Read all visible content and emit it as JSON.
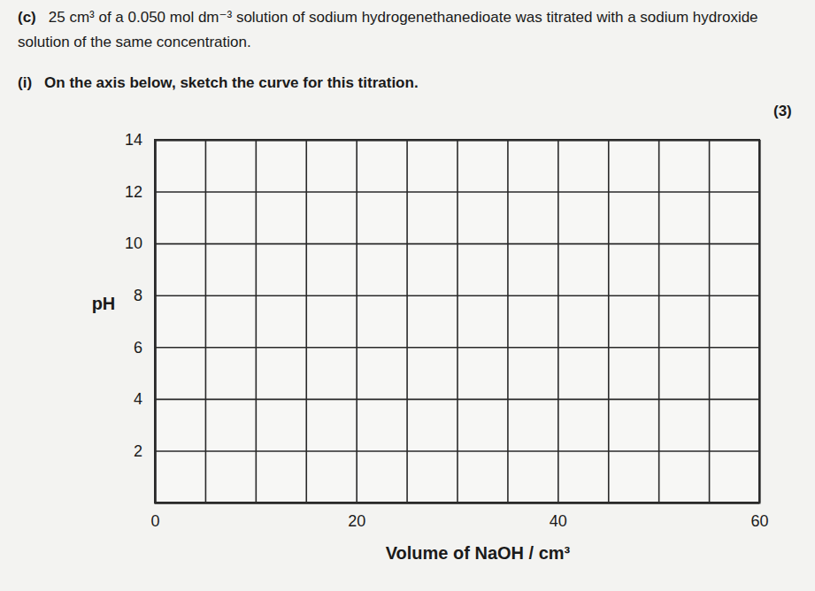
{
  "chart_data": {
    "type": "line",
    "annotations": {
      "part": "(c)",
      "text": "25 cm³ of a 0.050 mol dm⁻³ solution of sodium hydrogenethanedioate was titrated with a sodium hydroxide solution of the same concentration.",
      "subpart": "(i)",
      "instruction": "On the axis below, sketch the curve for this titration.",
      "marks": "(3)"
    },
    "x_label": "Volume of NaOH / cm³",
    "y_label": "pH",
    "series": [],
    "xlim": [
      0,
      60
    ],
    "ylim": [
      0,
      14
    ],
    "xticks": [
      {
        "value": 0,
        "label": "0"
      },
      {
        "value": 5,
        "label": null
      },
      {
        "value": 10,
        "label": null
      },
      {
        "value": 15,
        "label": null
      },
      {
        "value": 20,
        "label": "20"
      },
      {
        "value": 25,
        "label": null
      },
      {
        "value": 30,
        "label": null
      },
      {
        "value": 35,
        "label": null
      },
      {
        "value": 40,
        "label": "40"
      },
      {
        "value": 45,
        "label": null
      },
      {
        "value": 50,
        "label": null
      },
      {
        "value": 55,
        "label": null
      },
      {
        "value": 60,
        "label": "60"
      }
    ],
    "yticks": [
      {
        "value": 0,
        "label": null
      },
      2,
      4,
      6,
      8,
      10,
      12,
      14
    ],
    "grid": true
  }
}
